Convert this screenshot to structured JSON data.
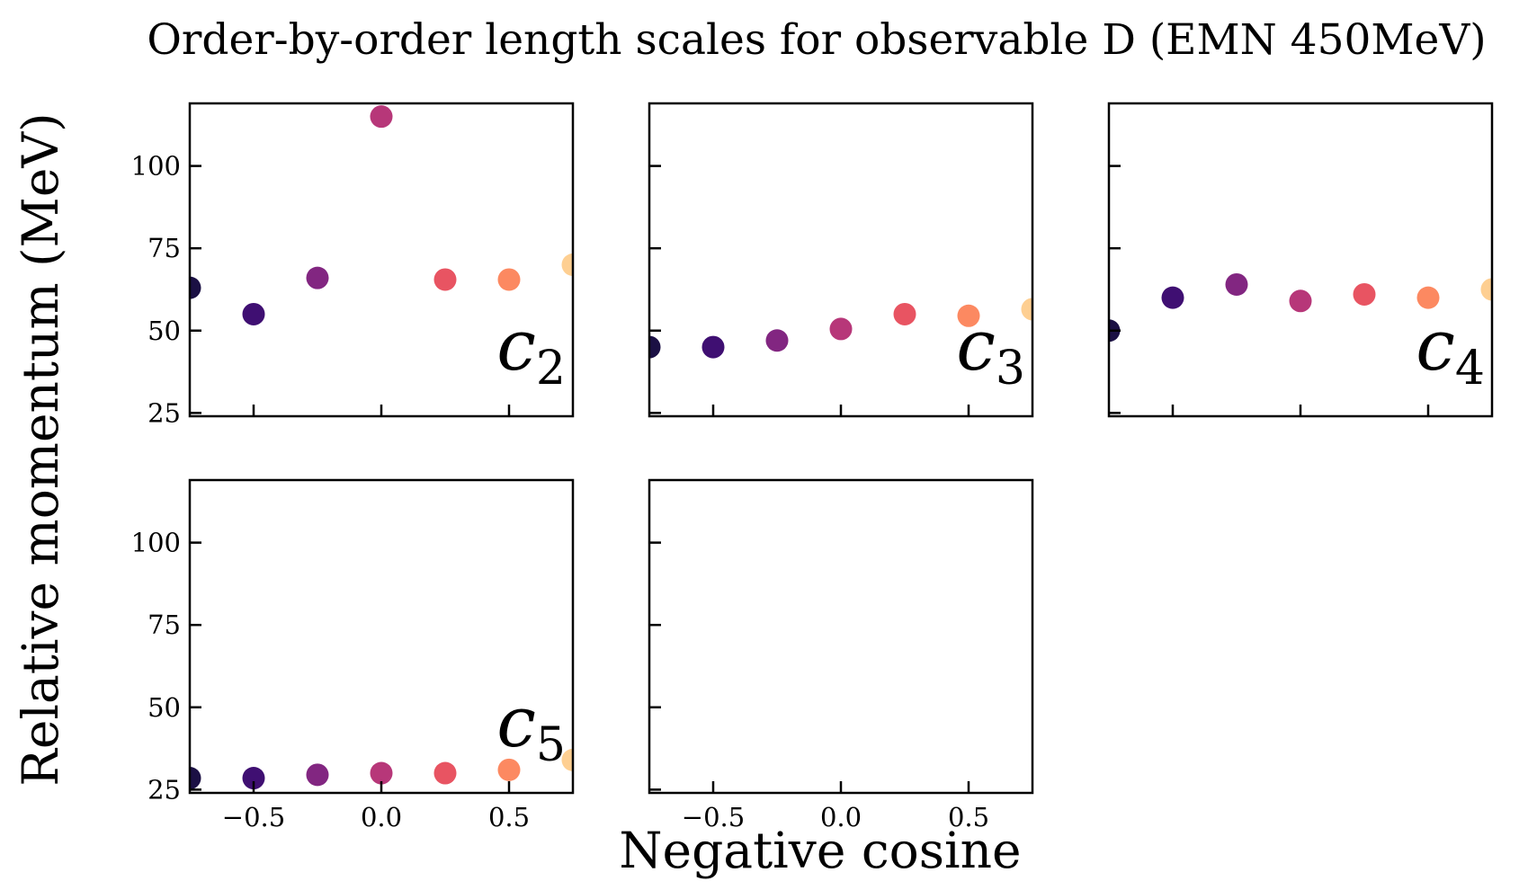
{
  "chart_data": {
    "type": "scatter",
    "title": "Order-by-order length scales for observable D (EMN 450MeV)",
    "xlabel": "Negative cosine",
    "ylabel": "Relative momentum (MeV)",
    "xlim": [
      -0.75,
      0.75
    ],
    "ylim": [
      24,
      119
    ],
    "xticks": [
      -0.5,
      0.0,
      0.5
    ],
    "xtick_labels": [
      "−0.5",
      "0.0",
      "0.5"
    ],
    "yticks": [
      25,
      50,
      75,
      100
    ],
    "ytick_labels": [
      "25",
      "50",
      "75",
      "100"
    ],
    "grid": false,
    "x": [
      -0.75,
      -0.5,
      -0.25,
      0.0,
      0.25,
      0.5,
      0.75
    ],
    "colors": [
      "#1b1044",
      "#3f0f72",
      "#822681",
      "#b73779",
      "#e85462",
      "#fc8961",
      "#fecf92"
    ],
    "panels": [
      {
        "label": "c",
        "subscript": "2",
        "values": [
          63,
          55,
          66,
          115,
          65.5,
          65.5,
          70
        ]
      },
      {
        "label": "c",
        "subscript": "3",
        "values": [
          45,
          45,
          47,
          50.5,
          55,
          54.5,
          56.5
        ]
      },
      {
        "label": "c",
        "subscript": "4",
        "values": [
          50,
          60,
          64,
          59,
          61,
          60,
          62.5
        ]
      },
      {
        "label": "c",
        "subscript": "5",
        "values": [
          28.5,
          28.5,
          29.5,
          30,
          30,
          31,
          34
        ]
      },
      {
        "label": "",
        "subscript": "",
        "values": []
      }
    ]
  }
}
